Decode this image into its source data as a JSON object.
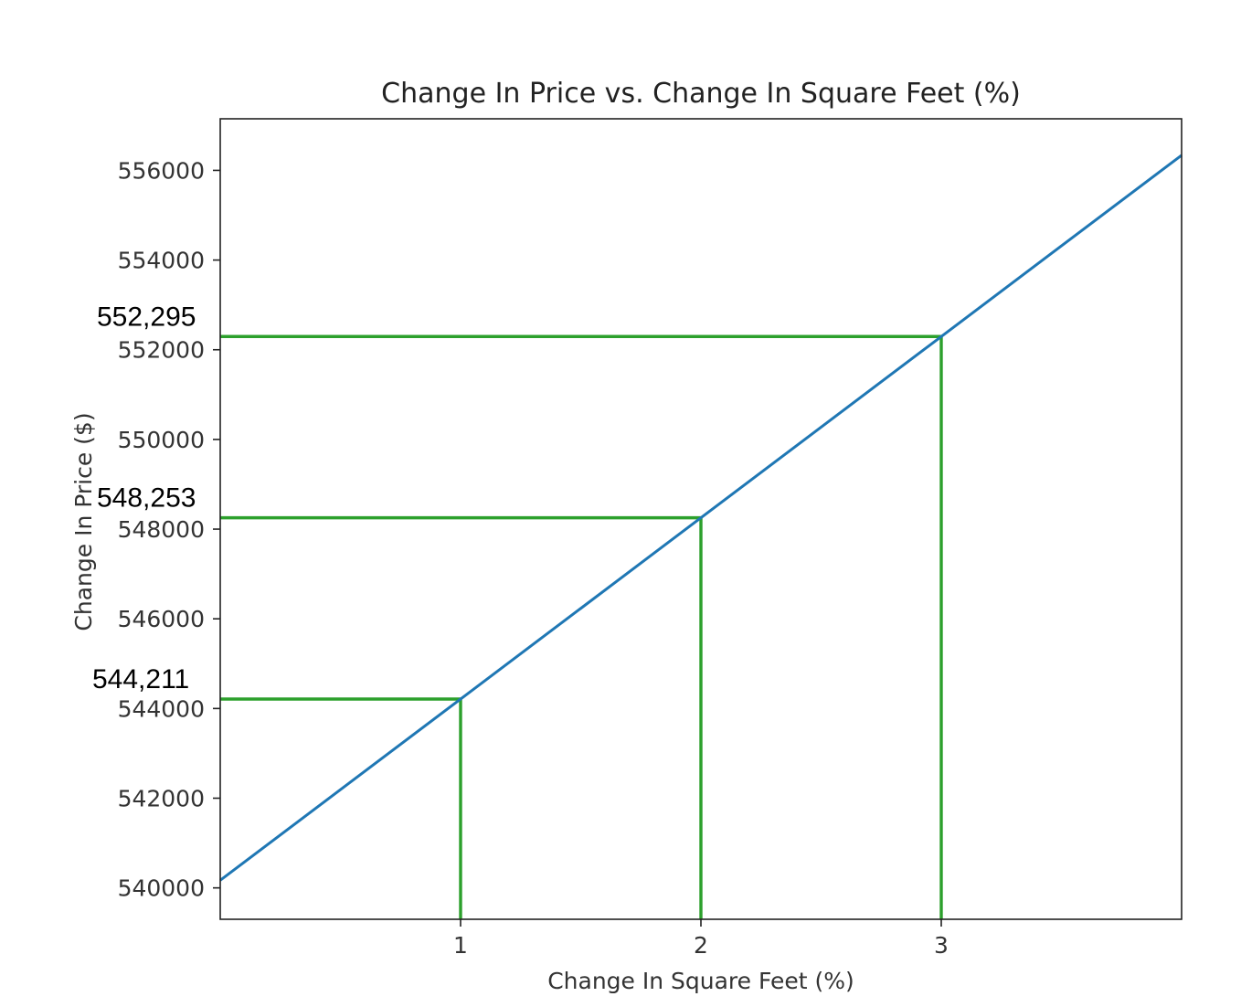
{
  "chart_data": {
    "type": "line",
    "title": "Change In Price vs. Change In Square Feet (%)",
    "xlabel": "Change In Square Feet (%)",
    "ylabel": "Change In Price ($)",
    "xlim": [
      0,
      4
    ],
    "ylim": [
      539300,
      557150
    ],
    "x_ticks": [
      1,
      2,
      3
    ],
    "y_ticks": [
      540000,
      542000,
      544000,
      546000,
      548000,
      550000,
      552000,
      554000,
      556000
    ],
    "grid": false,
    "series": [
      {
        "color": "#1f77b4",
        "x": [
          0,
          4
        ],
        "y": [
          540169,
          556337
        ]
      }
    ],
    "reference_lines": {
      "color": "#2ca02c",
      "points": [
        {
          "x": 1,
          "y": 544211
        },
        {
          "x": 2,
          "y": 548253
        },
        {
          "x": 3,
          "y": 552295
        }
      ]
    },
    "annotations": [
      "552,295",
      "548,253",
      "544,211"
    ]
  }
}
